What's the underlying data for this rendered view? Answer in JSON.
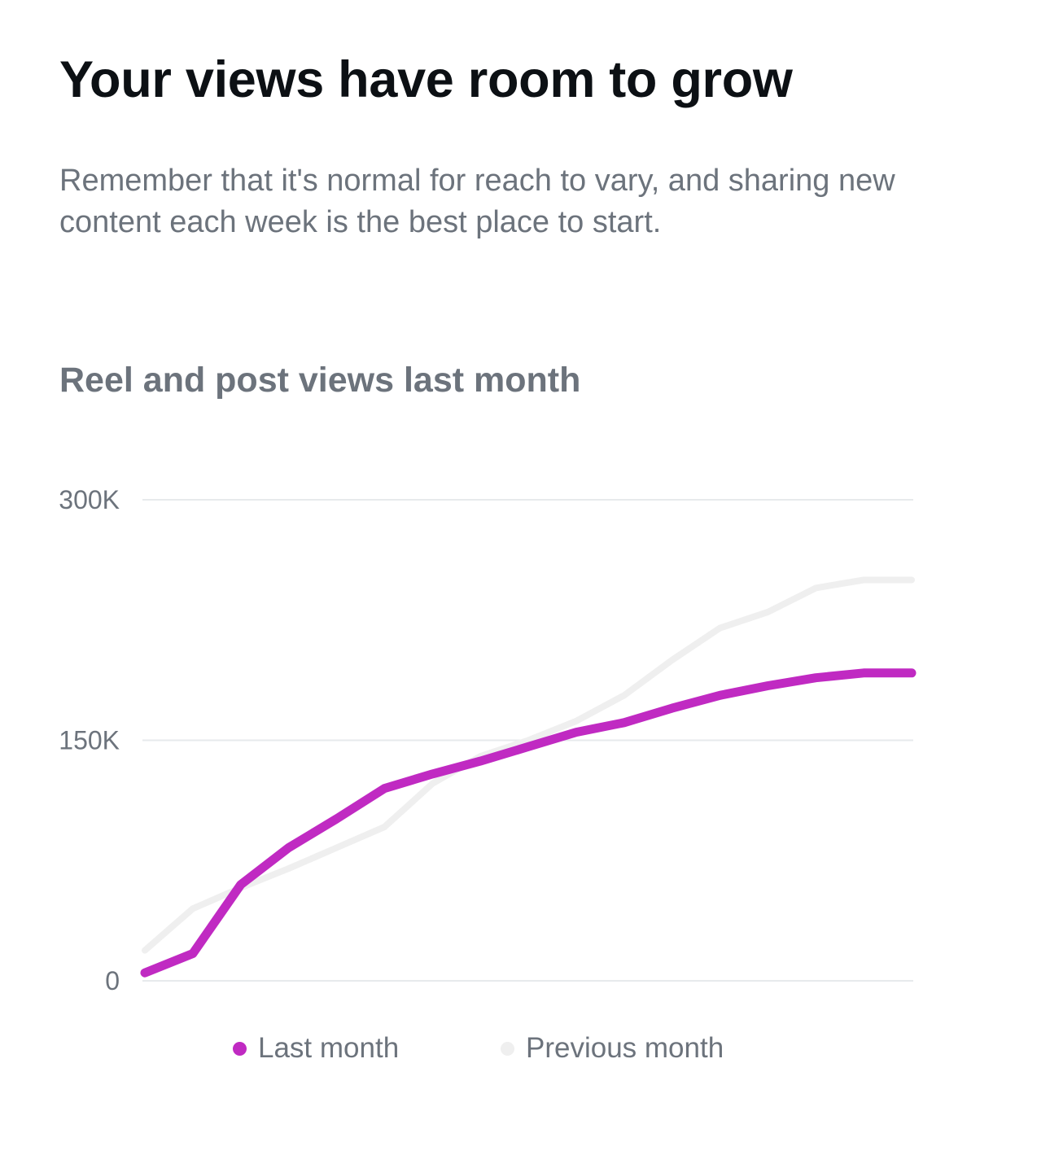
{
  "header": {
    "headline": "Your views have room to grow",
    "subtext": "Remember that it's normal for reach to vary, and sharing new content each week is the best place to start."
  },
  "chart_section": {
    "title": "Reel and post views last month"
  },
  "colors": {
    "last_month": "#c02ac2",
    "previous_month": "#efefef",
    "gridline": "#e7eaec",
    "muted_text": "#6c737c"
  },
  "chart_data": {
    "type": "line",
    "title": "Reel and post views last month",
    "xlabel": "",
    "ylabel": "",
    "ylim": [
      0,
      300000
    ],
    "yticks": [
      {
        "value": 0,
        "label": "0"
      },
      {
        "value": 150000,
        "label": "150K"
      },
      {
        "value": 300000,
        "label": "300K"
      }
    ],
    "grid": true,
    "legend_position": "bottom",
    "x": [
      1,
      2,
      3,
      4,
      5,
      6,
      7,
      8,
      9,
      10,
      11,
      12,
      13,
      14,
      15,
      16,
      17
    ],
    "series": [
      {
        "name": "Previous month",
        "color": "#efefef",
        "values": [
          19000,
          45000,
          58000,
          70000,
          83000,
          96000,
          123000,
          140000,
          150000,
          162000,
          178000,
          200000,
          220000,
          230000,
          245000,
          250000,
          250000
        ]
      },
      {
        "name": "Last month",
        "color": "#c02ac2",
        "values": [
          5000,
          17000,
          60000,
          83000,
          101000,
          120000,
          129000,
          137000,
          146000,
          155000,
          161000,
          170000,
          178000,
          184000,
          189000,
          192000,
          192000
        ]
      }
    ]
  },
  "legend": {
    "items": [
      {
        "label": "Last month",
        "color": "#c02ac2"
      },
      {
        "label": "Previous month",
        "color": "#efefef"
      }
    ]
  }
}
